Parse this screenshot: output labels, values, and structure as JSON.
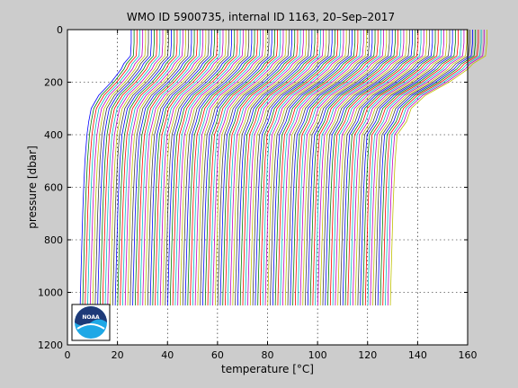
{
  "chart_data": {
    "type": "line",
    "title": "WMO ID 5900735, internal ID 1163, 20–Sep–2017",
    "xlabel": "temperature [°C]",
    "ylabel": "pressure [dbar]",
    "xlim": [
      0,
      160
    ],
    "ylim": [
      1200,
      0
    ],
    "y_reversed": true,
    "grid": true,
    "xticks": [
      0,
      20,
      40,
      60,
      80,
      100,
      120,
      140,
      160
    ],
    "yticks": [
      0,
      200,
      400,
      600,
      800,
      1000,
      1200
    ],
    "profile_count": 125,
    "profile_offset_step": 1.0,
    "base_profile": {
      "pressure": [
        0,
        50,
        100,
        130,
        150,
        200,
        250,
        300,
        350,
        400,
        500,
        600,
        700,
        800,
        900,
        1000,
        1050
      ],
      "temperature": [
        25.5,
        25.5,
        25.2,
        22.5,
        21.5,
        17.5,
        12.5,
        9.5,
        8.5,
        7.8,
        7.0,
        6.5,
        6.1,
        5.8,
        5.5,
        5.2,
        5.1
      ]
    },
    "series_colors": [
      "#0000ff",
      "#008000",
      "#ff0000",
      "#00bfbf",
      "#bf00bf",
      "#bfbf00",
      "#404040"
    ]
  },
  "logo": {
    "text": "NOAA",
    "colors": {
      "navy": "#1e3a78",
      "sky": "#1fa8e6",
      "white": "#ffffff"
    }
  }
}
